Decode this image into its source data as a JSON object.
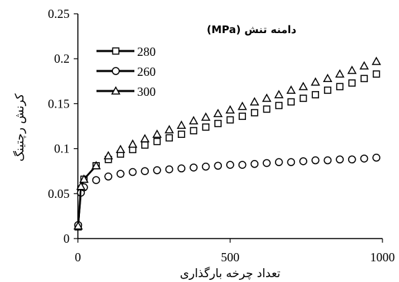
{
  "chart_data": {
    "type": "scatter",
    "title": "",
    "xlabel": "تعداد چرخه بارگذاری",
    "ylabel": "کرنش رچتینگ",
    "xlim": [
      0,
      1000
    ],
    "ylim": [
      0,
      0.25
    ],
    "xticks": [
      0,
      500,
      1000
    ],
    "xtick_labels": [
      "0",
      "500",
      "1000"
    ],
    "yticks": [
      0,
      0.05,
      0.1,
      0.15,
      0.2,
      0.25
    ],
    "ytick_labels": [
      "0",
      "0.05",
      "0.1",
      "0.15",
      "0.2",
      "0.25"
    ],
    "grid": false,
    "legend_title": "دامنه تنش (MPa)",
    "legend_position": "top-left",
    "series": [
      {
        "name": "280",
        "marker": "square",
        "connect_first_points": 4,
        "x": [
          1,
          10,
          20,
          60,
          100,
          140,
          180,
          220,
          260,
          300,
          340,
          380,
          420,
          460,
          500,
          540,
          580,
          620,
          660,
          700,
          740,
          780,
          820,
          860,
          900,
          940,
          980
        ],
        "y": [
          0.013,
          0.055,
          0.066,
          0.081,
          0.088,
          0.094,
          0.099,
          0.104,
          0.108,
          0.112,
          0.116,
          0.12,
          0.124,
          0.128,
          0.132,
          0.136,
          0.14,
          0.144,
          0.148,
          0.152,
          0.156,
          0.16,
          0.165,
          0.169,
          0.173,
          0.178,
          0.183
        ]
      },
      {
        "name": "260",
        "marker": "circle",
        "connect_first_points": 3,
        "x": [
          1,
          10,
          20,
          60,
          100,
          140,
          180,
          220,
          260,
          300,
          340,
          380,
          420,
          460,
          500,
          540,
          580,
          620,
          660,
          700,
          740,
          780,
          820,
          860,
          900,
          940,
          980
        ],
        "y": [
          0.015,
          0.051,
          0.057,
          0.065,
          0.069,
          0.072,
          0.074,
          0.075,
          0.076,
          0.077,
          0.078,
          0.079,
          0.08,
          0.081,
          0.082,
          0.082,
          0.083,
          0.084,
          0.085,
          0.085,
          0.086,
          0.087,
          0.087,
          0.088,
          0.088,
          0.089,
          0.09
        ]
      },
      {
        "name": "300",
        "marker": "triangle",
        "connect_first_points": 4,
        "x": [
          1,
          10,
          20,
          60,
          100,
          140,
          180,
          220,
          260,
          300,
          340,
          380,
          420,
          460,
          500,
          540,
          580,
          620,
          660,
          700,
          740,
          780,
          820,
          860,
          900,
          940,
          980
        ],
        "y": [
          0.014,
          0.058,
          0.066,
          0.081,
          0.092,
          0.099,
          0.105,
          0.111,
          0.116,
          0.121,
          0.126,
          0.131,
          0.135,
          0.139,
          0.143,
          0.147,
          0.152,
          0.156,
          0.16,
          0.165,
          0.169,
          0.174,
          0.178,
          0.183,
          0.187,
          0.192,
          0.197
        ]
      }
    ]
  }
}
